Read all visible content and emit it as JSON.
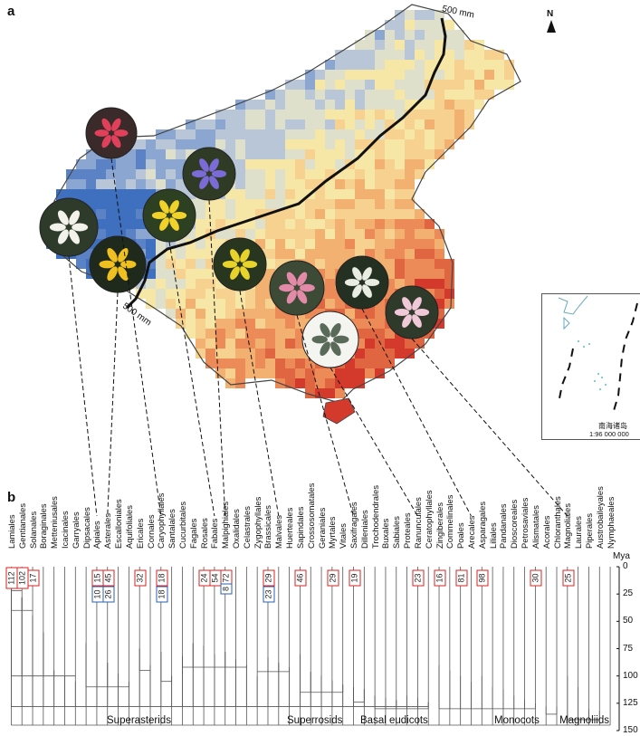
{
  "panel_a_label": "a",
  "panel_b_label": "b",
  "compass": "N",
  "isohyet_top": "500 mm",
  "isohyet_left": "500 mm",
  "inset_title": "南海诸岛",
  "inset_scale": "1:96 000 000",
  "orders": [
    "Lamiales",
    "Gentianales",
    "Solanales",
    "Boraginales",
    "Metteniusales",
    "Icacinales",
    "Garryales",
    "Dipsacales",
    "Apiales",
    "Asterales",
    "Escalloniales",
    "Aquifoliales",
    "Ericales",
    "Cornales",
    "Caryophyllales",
    "Santalales",
    "Cucurbitales",
    "Fagales",
    "Rosales",
    "Fabales",
    "Malpighiales",
    "Oxalidales",
    "Celastrales",
    "Zygophyllales",
    "Brassicales",
    "Malvales",
    "Huerteales",
    "Sapindales",
    "Crossosomatales",
    "Geraniales",
    "Myrtales",
    "Vitales",
    "Saxifragales",
    "Dilleniales",
    "Trochodendrales",
    "Buxales",
    "Sabiales",
    "Proteales",
    "Ranunculales",
    "Ceratophyllales",
    "Zingiberales",
    "Commelinales",
    "Poales",
    "Arecales",
    "Asparagales",
    "Liliales",
    "Pandanales",
    "Dioscoreales",
    "Petrosaviales",
    "Alismatales",
    "Acorales",
    "Chloranthales",
    "Magnoliales",
    "Laurales",
    "Piperales",
    "Austrobaileyales",
    "Nymphaeales"
  ],
  "counts": [
    {
      "order": "Lamiales",
      "value": "112",
      "color": "red"
    },
    {
      "order": "Gentianales",
      "value": "102",
      "color": "red"
    },
    {
      "order": "Solanales",
      "value": "17",
      "color": "red"
    },
    {
      "order": "Apiales",
      "value": "15",
      "color": "red"
    },
    {
      "order": "Apiales",
      "value": "10",
      "color": "blue"
    },
    {
      "order": "Asterales",
      "value": "45",
      "color": "red"
    },
    {
      "order": "Asterales",
      "value": "26",
      "color": "blue"
    },
    {
      "order": "Ericales",
      "value": "32",
      "color": "red"
    },
    {
      "order": "Caryophyllales",
      "value": "18",
      "color": "red"
    },
    {
      "order": "Caryophyllales",
      "value": "18",
      "color": "blue"
    },
    {
      "order": "Rosales",
      "value": "24",
      "color": "red"
    },
    {
      "order": "Fabales",
      "value": "54",
      "color": "red"
    },
    {
      "order": "Malpighiales",
      "value": "72",
      "color": "red"
    },
    {
      "order": "Malpighiales",
      "value": "8",
      "color": "blue"
    },
    {
      "order": "Brassicales",
      "value": "29",
      "color": "red"
    },
    {
      "order": "Brassicales",
      "value": "23",
      "color": "blue"
    },
    {
      "order": "Sapindales",
      "value": "46",
      "color": "red"
    },
    {
      "order": "Myrtales",
      "value": "29",
      "color": "red"
    },
    {
      "order": "Saxifragales",
      "value": "19",
      "color": "red"
    },
    {
      "order": "Ranunculales",
      "value": "23",
      "color": "red"
    },
    {
      "order": "Zingiberales",
      "value": "16",
      "color": "red"
    },
    {
      "order": "Poales",
      "value": "81",
      "color": "red"
    },
    {
      "order": "Asparagales",
      "value": "98",
      "color": "red"
    },
    {
      "order": "Alismatales",
      "value": "30",
      "color": "red"
    },
    {
      "order": "Magnoliales",
      "value": "25",
      "color": "red"
    }
  ],
  "clades": [
    "Superasterids",
    "Superrosids",
    "Basal eudicots",
    "Monocots",
    "Magnoliids"
  ],
  "axis": {
    "unit": "Mya",
    "ticks": [
      "0",
      "25",
      "50",
      "75",
      "100",
      "125",
      "150"
    ]
  },
  "colors": {
    "dry_blue": "#5b82c4",
    "wet_red": "#d43a2c",
    "mid_yellow": "#f7e7a6",
    "box_red": "#d22222",
    "box_blue": "#2a5fb0"
  }
}
